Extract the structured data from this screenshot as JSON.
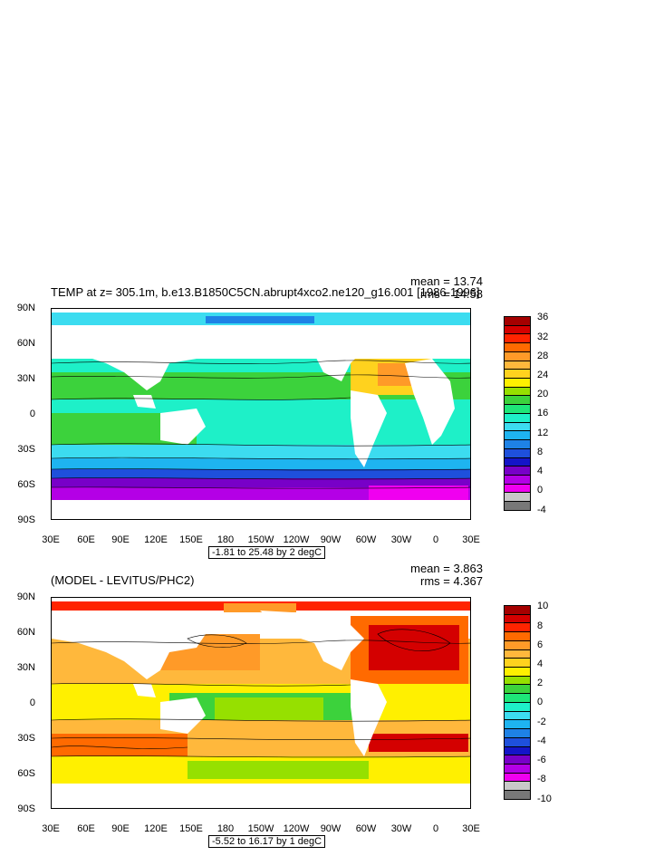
{
  "top_panel": {
    "title": "TEMP at z= 305.1m, b.e13.B1850C5CN.abrupt4xco2.ne120_g16.001 [1986-1996]",
    "mean_label": "mean = 13.74",
    "rms_label": "rms = 14.58",
    "range_label": "-1.81 to 25.48 by 2 degC",
    "lat_labels": [
      "90N",
      "60N",
      "30N",
      "0",
      "30S",
      "60S",
      "90S"
    ],
    "lon_labels": [
      "30E",
      "60E",
      "90E",
      "120E",
      "150E",
      "180",
      "150W",
      "120W",
      "90W",
      "60W",
      "30W",
      "0",
      "30E"
    ],
    "colorbar_labels": [
      "36",
      "32",
      "28",
      "24",
      "20",
      "16",
      "12",
      "8",
      "4",
      "0",
      "-4"
    ],
    "colorbar_colors": [
      "#a50000",
      "#d40000",
      "#ff2400",
      "#ff6a00",
      "#ff9a28",
      "#ffb83c",
      "#ffd21e",
      "#fff000",
      "#96e000",
      "#3cd23c",
      "#1ee678",
      "#1ef0c8",
      "#3cdcf0",
      "#1eb4f0",
      "#1e82e6",
      "#1e50dc",
      "#1414c8",
      "#7800c8",
      "#b400e6",
      "#f000f0",
      "#c8c8c8",
      "#787878"
    ]
  },
  "bottom_panel": {
    "title": "(MODEL - LEVITUS/PHC2)",
    "mean_label": "mean = 3.863",
    "rms_label": "rms = 4.367",
    "range_label": "-5.52 to 16.17 by 1 degC",
    "lat_labels": [
      "90N",
      "60N",
      "30N",
      "0",
      "30S",
      "60S",
      "90S"
    ],
    "lon_labels": [
      "30E",
      "60E",
      "90E",
      "120E",
      "150E",
      "180",
      "150W",
      "120W",
      "90W",
      "60W",
      "30W",
      "0",
      "30E"
    ],
    "colorbar_labels": [
      "10",
      "8",
      "6",
      "4",
      "2",
      "0",
      "-2",
      "-4",
      "-6",
      "-8",
      "-10"
    ],
    "colorbar_colors": [
      "#a50000",
      "#d40000",
      "#ff2400",
      "#ff6a00",
      "#ff9a28",
      "#ffb83c",
      "#ffd21e",
      "#fff000",
      "#96e000",
      "#3cd23c",
      "#1ee678",
      "#1ef0c8",
      "#3cdcf0",
      "#1eb4f0",
      "#1e82e6",
      "#1e50dc",
      "#1414c8",
      "#7800c8",
      "#b400e6",
      "#f000f0",
      "#c8c8c8",
      "#787878"
    ]
  }
}
